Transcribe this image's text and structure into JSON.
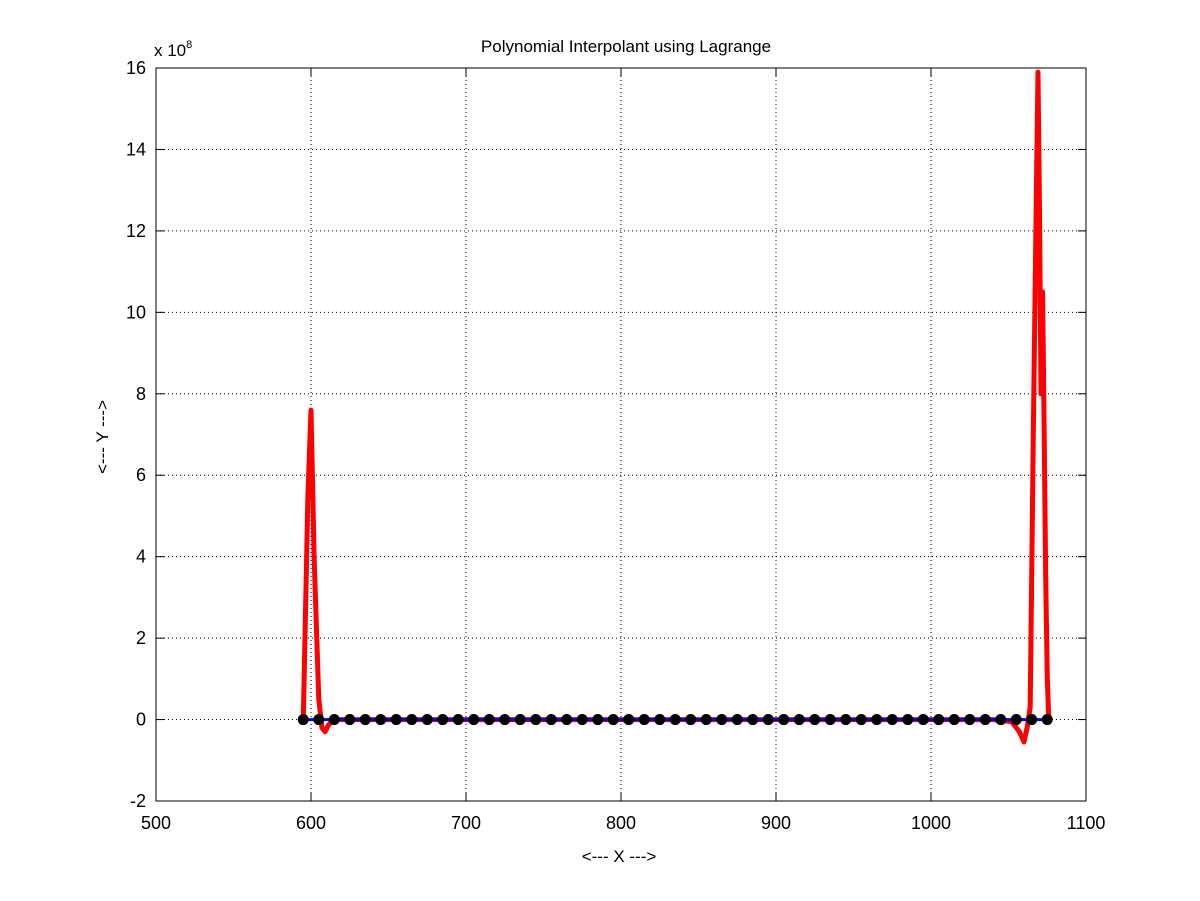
{
  "chart_data": {
    "type": "line",
    "title": "Polynomial Interpolant using Lagrange",
    "xlabel": "<--- X --->",
    "ylabel": "<--- Y --->",
    "y_exponent_label": "x 10",
    "y_exponent_power": "8",
    "xlim": [
      500,
      1100
    ],
    "ylim": [
      -2,
      16
    ],
    "y_scale": 100000000,
    "x_ticks": [
      500,
      600,
      700,
      800,
      900,
      1000,
      1100
    ],
    "x_tick_labels": [
      "500",
      "600",
      "700",
      "800",
      "900",
      "1000",
      "1100"
    ],
    "y_ticks": [
      -2,
      0,
      2,
      4,
      6,
      8,
      10,
      12,
      14,
      16
    ],
    "y_tick_labels": [
      "-2",
      "0",
      "2",
      "4",
      "6",
      "8",
      "10",
      "12",
      "14",
      "16"
    ],
    "grid": true,
    "grid_style": "dotted",
    "series": [
      {
        "style": "line",
        "color": "#ff0000",
        "x": [
          595,
          598,
          600,
          602,
          605,
          607,
          609,
          611,
          614,
          617,
          620,
          640,
          700,
          800,
          900,
          1000,
          1040,
          1052,
          1057,
          1060,
          1062,
          1064,
          1066,
          1068,
          1069,
          1070,
          1071,
          1072,
          1073,
          1074,
          1075,
          1076
        ],
        "y": [
          0,
          5.5,
          7.6,
          4.0,
          0.5,
          -0.2,
          -0.3,
          -0.15,
          0,
          0,
          0,
          0,
          0,
          0,
          0,
          0,
          0,
          -0.05,
          -0.3,
          -0.55,
          -0.2,
          0.3,
          7.0,
          13.0,
          15.9,
          12.5,
          8.0,
          10.5,
          7.0,
          3.5,
          1.0,
          0
        ]
      },
      {
        "style": "line",
        "color": "#0000ff",
        "x": [
          595,
          1075
        ],
        "y": [
          0,
          0
        ]
      },
      {
        "style": "markers",
        "color": "#000000",
        "x": [
          595,
          605,
          615,
          625,
          635,
          645,
          655,
          665,
          675,
          685,
          695,
          705,
          715,
          725,
          735,
          745,
          755,
          765,
          775,
          785,
          795,
          805,
          815,
          825,
          835,
          845,
          855,
          865,
          875,
          885,
          895,
          905,
          915,
          925,
          935,
          945,
          955,
          965,
          975,
          985,
          995,
          1005,
          1015,
          1025,
          1035,
          1045,
          1055,
          1065,
          1075
        ],
        "y": [
          0,
          0,
          0,
          0,
          0,
          0,
          0,
          0,
          0,
          0,
          0,
          0,
          0,
          0,
          0,
          0,
          0,
          0,
          0,
          0,
          0,
          0,
          0,
          0,
          0,
          0,
          0,
          0,
          0,
          0,
          0,
          0,
          0,
          0,
          0,
          0,
          0,
          0,
          0,
          0,
          0,
          0,
          0,
          0,
          0,
          0,
          0,
          0,
          0
        ]
      }
    ]
  }
}
